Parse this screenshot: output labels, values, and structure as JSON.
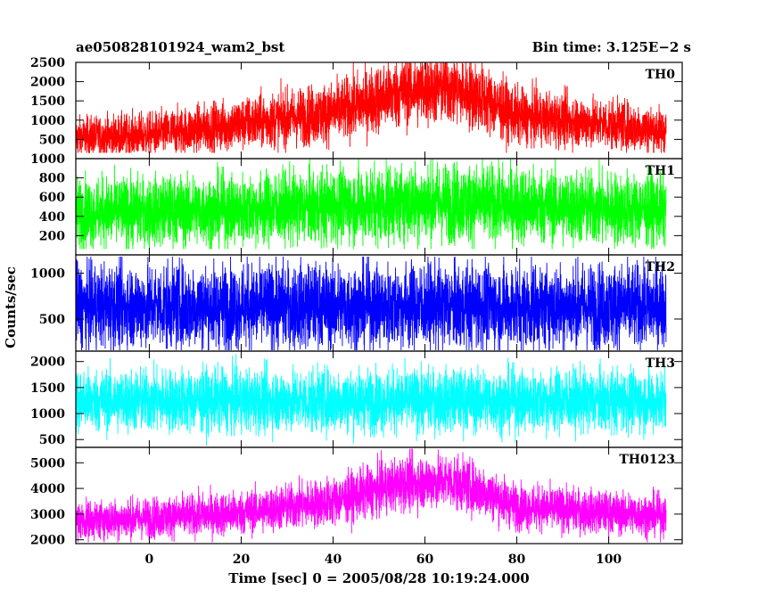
{
  "chart_data": {
    "type": "line",
    "title": "ae050828101924_wam2_bst",
    "subtitle": "Bin time: 3.125E−2 s",
    "xlabel": "Time [sec] 0 = 2005/08/28 10:19:24.000",
    "ylabel": "Counts/sec",
    "xlim": [
      -16,
      116
    ],
    "data_x_range": [
      -16,
      112.5
    ],
    "x_ticks": [
      0,
      20,
      40,
      60,
      80,
      100
    ],
    "x_tick_labels": [
      "0",
      "20",
      "40",
      "60",
      "80",
      "100"
    ],
    "panels": [
      {
        "name": "TH0",
        "color": "#ff0000",
        "ylim": [
          0,
          2500
        ],
        "y_ticks": [
          500,
          1000,
          1500,
          2000,
          2500
        ],
        "y_tick_labels": [
          "500",
          "1000",
          "1500",
          "2000",
          "2500"
        ],
        "trend": {
          "x": [
            -16,
            0,
            20,
            40,
            55,
            65,
            72,
            80,
            100,
            112
          ],
          "y": [
            550,
            620,
            900,
            1200,
            1750,
            1850,
            1600,
            1100,
            900,
            720
          ]
        },
        "spread": {
          "x": [
            -16,
            0,
            20,
            40,
            55,
            65,
            72,
            80,
            100,
            112
          ],
          "y": [
            260,
            280,
            340,
            390,
            460,
            470,
            450,
            360,
            320,
            300
          ]
        },
        "range_min": 150,
        "range_max": 2500
      },
      {
        "name": "TH1",
        "color": "#00ff00",
        "ylim": [
          0,
          1000
        ],
        "y_ticks": [
          200,
          400,
          600,
          800,
          1000
        ],
        "y_tick_labels": [
          "200",
          "400",
          "600",
          "800",
          "1000"
        ],
        "trend": {
          "x": [
            -16,
            0,
            20,
            40,
            60,
            80,
            100,
            112
          ],
          "y": [
            440,
            450,
            470,
            510,
            550,
            520,
            480,
            470
          ]
        },
        "spread": {
          "x": [
            -16,
            0,
            20,
            40,
            60,
            80,
            100,
            112
          ],
          "y": [
            180,
            180,
            185,
            195,
            205,
            200,
            190,
            185
          ]
        },
        "range_min": 60,
        "range_max": 1000
      },
      {
        "name": "TH2",
        "color": "#0000ff",
        "ylim": [
          150,
          1200
        ],
        "y_ticks": [
          500,
          1000
        ],
        "y_tick_labels": [
          "500",
          "1000"
        ],
        "trend": {
          "x": [
            -16,
            112
          ],
          "y": [
            640,
            640
          ]
        },
        "spread": {
          "x": [
            -16,
            112
          ],
          "y": [
            230,
            230
          ]
        },
        "range_min": 160,
        "range_max": 1180
      },
      {
        "name": "TH3",
        "color": "#00ffff",
        "ylim": [
          350,
          2200
        ],
        "y_ticks": [
          500,
          1000,
          1500,
          2000
        ],
        "y_tick_labels": [
          "500",
          "1000",
          "1500",
          "2000"
        ],
        "trend": {
          "x": [
            -16,
            112
          ],
          "y": [
            1250,
            1250
          ]
        },
        "spread": {
          "x": [
            -16,
            112
          ],
          "y": [
            300,
            300
          ]
        },
        "range_min": 380,
        "range_max": 2150
      },
      {
        "name": "TH0123",
        "color": "#ff00ff",
        "ylim": [
          1850,
          5600
        ],
        "y_ticks": [
          2000,
          3000,
          4000,
          5000
        ],
        "y_tick_labels": [
          "2000",
          "3000",
          "4000",
          "5000"
        ],
        "trend": {
          "x": [
            -16,
            0,
            20,
            40,
            55,
            65,
            72,
            80,
            100,
            112
          ],
          "y": [
            2750,
            2850,
            3050,
            3500,
            4200,
            4300,
            3950,
            3300,
            3050,
            2950
          ]
        },
        "spread": {
          "x": [
            -16,
            0,
            20,
            40,
            55,
            65,
            72,
            80,
            100,
            112
          ],
          "y": [
            380,
            390,
            420,
            460,
            520,
            530,
            500,
            440,
            410,
            400
          ]
        },
        "range_min": 1900,
        "range_max": 5550
      }
    ],
    "grid": false
  }
}
